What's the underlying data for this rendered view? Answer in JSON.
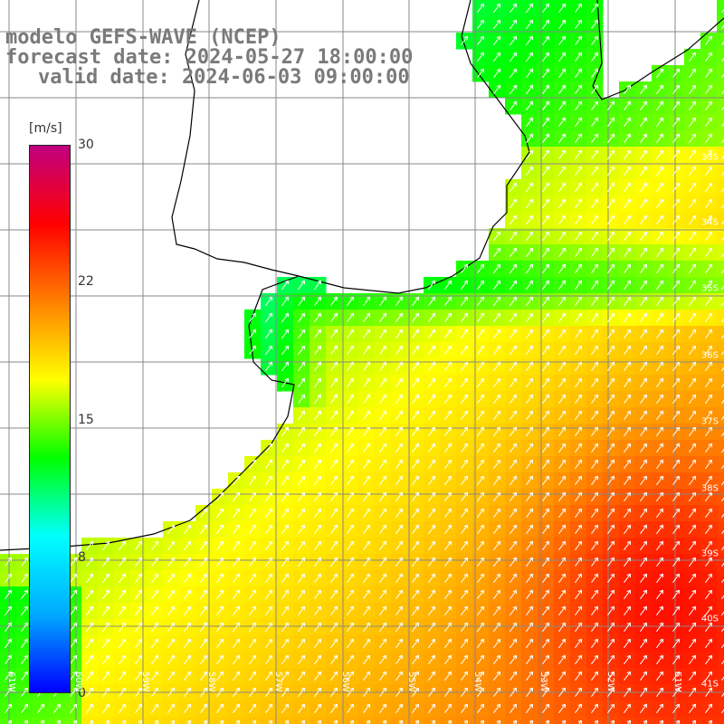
{
  "title": {
    "line1": "modelo GEFS-WAVE (NCEP)",
    "line2": "forecast date: 2024-05-27 18:00:00",
    "line3": "valid date: 2024-06-03 09:00:00"
  },
  "colorbar": {
    "unit": "[m/s]",
    "ticks": [
      "30",
      "22",
      "15",
      "8",
      "0"
    ],
    "tick_values": [
      30,
      22,
      15,
      8,
      0
    ],
    "min": 0,
    "max": 30,
    "colors": [
      "#0000ff",
      "#00aaff",
      "#00ffff",
      "#00ff00",
      "#ffff00",
      "#ff8000",
      "#ff0000",
      "#c00080"
    ]
  },
  "axes": {
    "lon_labels": [
      "61W",
      "60W",
      "59W",
      "58W",
      "57W",
      "56W",
      "55W",
      "54W",
      "53W",
      "52W",
      "51W"
    ],
    "lat_labels": [
      "33S",
      "34S",
      "35S",
      "36S",
      "37S",
      "38S",
      "39S",
      "40S",
      "41S"
    ]
  },
  "colors": {
    "land": "#ffffff",
    "grid": "#888888",
    "coast": "#000000",
    "arrow": "#ffffff"
  }
}
